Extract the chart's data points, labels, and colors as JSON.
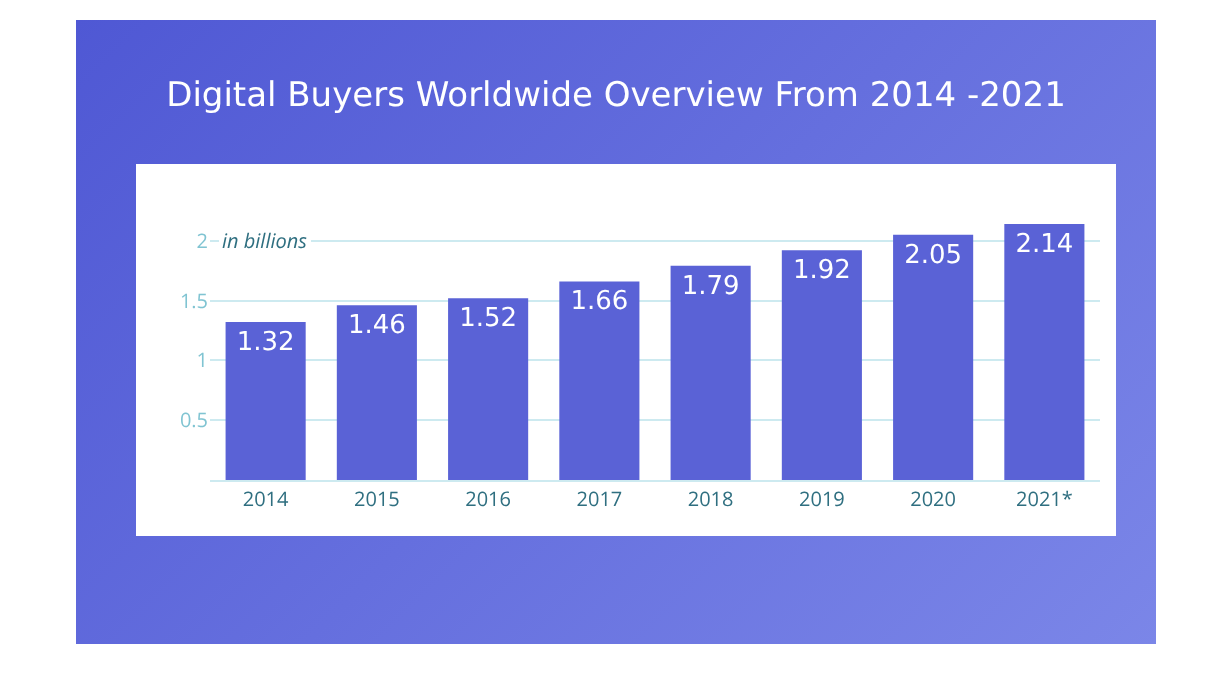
{
  "chart_data": {
    "type": "bar",
    "title": "Digital Buyers Worldwide Overview From 2014 -2021",
    "ylabel": "in billions",
    "categories": [
      "2014",
      "2015",
      "2016",
      "2017",
      "2018",
      "2019",
      "2020",
      "2021*"
    ],
    "values": [
      1.32,
      1.46,
      1.52,
      1.66,
      1.79,
      1.92,
      2.05,
      2.14
    ],
    "color": "#5a62d6",
    "data_labels": true,
    "ylim": [
      0,
      2.14
    ],
    "yticks": [
      0.5,
      1,
      1.5,
      2
    ],
    "grid": "y"
  }
}
